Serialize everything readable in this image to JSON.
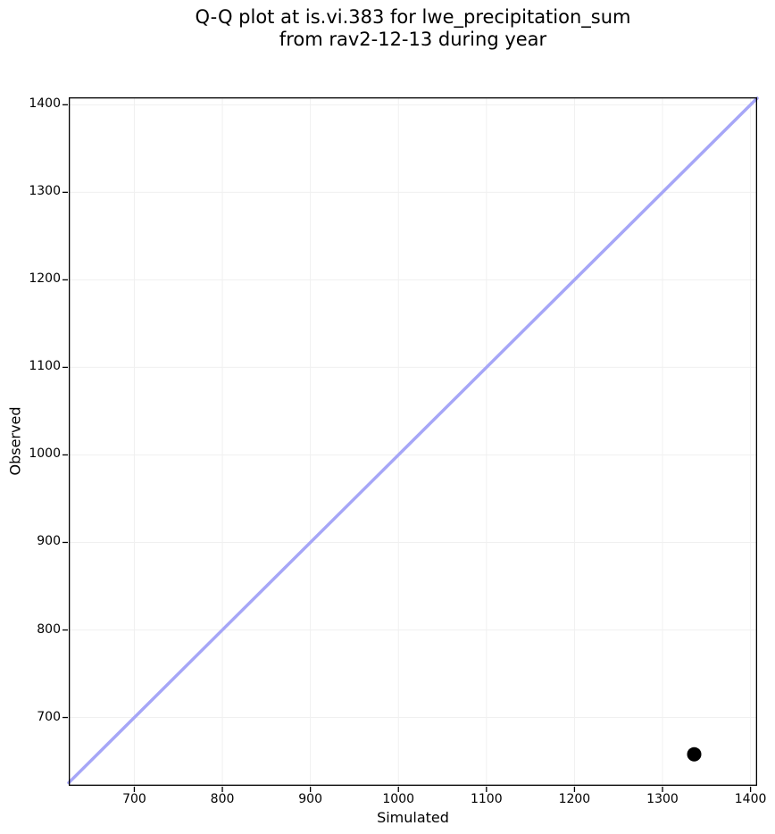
{
  "chart_data": {
    "type": "scatter",
    "title_lines": [
      "Q-Q plot at is.vi.383 for lwe_precipitation_sum",
      "from rav2-12-13 during year"
    ],
    "xlabel": "Simulated",
    "ylabel": "Observed",
    "xlim": [
      625.5,
      1407.5
    ],
    "ylim": [
      622.0,
      1408.5
    ],
    "x_ticks": [
      700,
      800,
      900,
      1000,
      1100,
      1200,
      1300,
      1400
    ],
    "y_ticks": [
      700,
      800,
      900,
      1000,
      1100,
      1200,
      1300,
      1400
    ],
    "grid": true,
    "grid_color": "#f0f0f0",
    "spine_color": "#000000",
    "identity_line": {
      "x1": 625.5,
      "y1": 625.5,
      "x2": 1407.5,
      "y2": 1407.5,
      "color": "#a6a6f7",
      "width": 3.5
    },
    "series": [
      {
        "name": "quantile-points",
        "marker": "circle",
        "color": "#000000",
        "radius": 8,
        "points": [
          {
            "x": 1336,
            "y": 658
          }
        ]
      }
    ]
  }
}
